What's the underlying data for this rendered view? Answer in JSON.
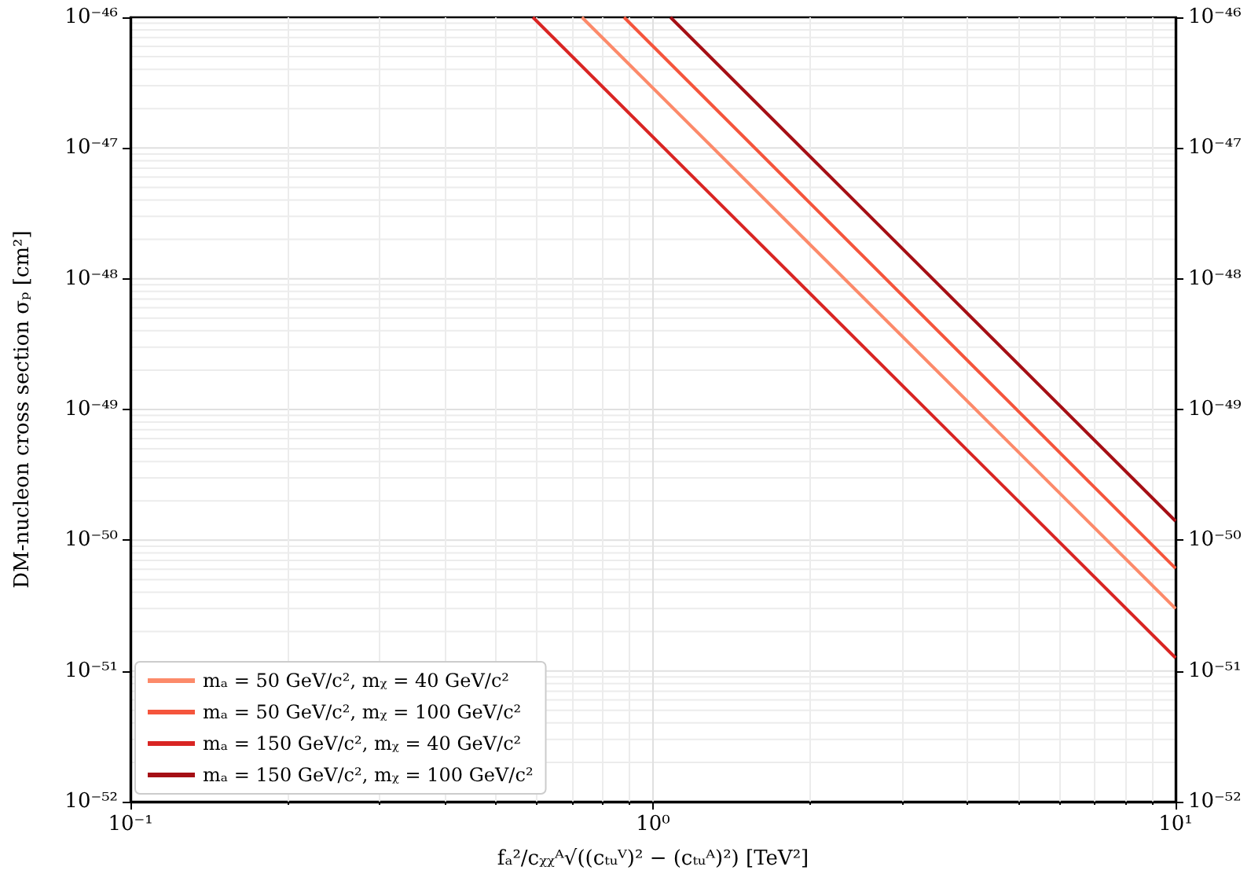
{
  "chart_data": {
    "type": "line",
    "xlabel": "fₐ²/cᵪᵪᴬ√((cₜᵤⱽ)² − (cₜᵤᴬ)²) [TeV²]",
    "ylabel": "DM-nucleon cross section σₚ [cm²]",
    "series": [
      {
        "name": "mₐ = 50 GeV/c², mᵪ = 40 GeV/c²",
        "color": "#fc8a6a",
        "x": [
          0.731,
          10
        ],
        "values": [
          1e-46,
          3e-51
        ]
      },
      {
        "name": "mₐ = 50 GeV/c², mᵪ = 100 GeV/c²",
        "color": "#f5553c",
        "x": [
          0.88,
          10
        ],
        "values": [
          1e-46,
          6.1e-51
        ]
      },
      {
        "name": "mₐ = 150 GeV/c², mᵪ = 40 GeV/c²",
        "color": "#d92523",
        "x": [
          0.589,
          10
        ],
        "values": [
          1e-46,
          1.26e-51
        ]
      },
      {
        "name": "mₐ = 150 GeV/c², mᵪ = 100 GeV/c²",
        "color": "#a50f15",
        "x": [
          1.08,
          10
        ],
        "values": [
          1e-46,
          1.4e-50
        ]
      }
    ],
    "log": "xy",
    "xlim": [
      0.1,
      10
    ],
    "xticks": [
      {
        "value": 0.1,
        "label": "10⁻¹"
      },
      {
        "value": 1,
        "label": "10⁰"
      },
      {
        "value": 10,
        "label": "10¹"
      }
    ],
    "ylim": [
      1e-52,
      1e-46
    ],
    "yticks": [
      {
        "value": 1e-52,
        "label": "10⁻⁵²"
      },
      {
        "value": 1e-51,
        "label": "10⁻⁵¹"
      },
      {
        "value": 1e-50,
        "label": "10⁻⁵⁰"
      },
      {
        "value": 1e-49,
        "label": "10⁻⁴⁹"
      },
      {
        "value": 1e-48,
        "label": "10⁻⁴⁸"
      },
      {
        "value": 1e-47,
        "label": "10⁻⁴⁷"
      },
      {
        "value": 1e-46,
        "label": "10⁻⁴⁶"
      }
    ],
    "grid": true,
    "legend": "bottom left",
    "marker": "none",
    "line_style": "solid"
  }
}
